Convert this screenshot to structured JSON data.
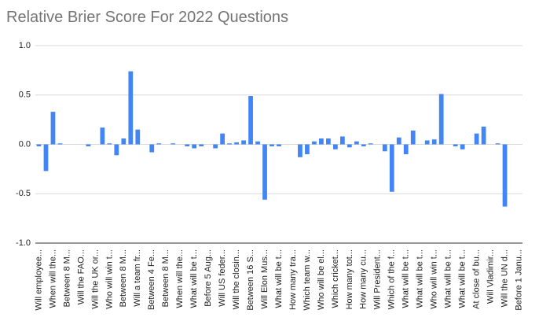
{
  "chart_data": {
    "type": "bar",
    "title": "Relative Brier Score For 2022 Questions",
    "color": "#4285f4",
    "grid": true,
    "ylim": [
      -1.0,
      1.0
    ],
    "yticks": [
      {
        "value": -1.0,
        "label": "-1.0"
      },
      -0.5,
      {
        "value": 0,
        "label": "0.0"
      },
      0.5,
      {
        "value": 1.0,
        "label": "1.0"
      }
    ],
    "categories": [
      "Will employee...",
      null,
      "When will the...",
      null,
      "Between 8 M...",
      null,
      "Will the FAO...",
      null,
      "Will the UK or...",
      null,
      "Who will win t...",
      null,
      "Between 8 M...",
      null,
      "Will a team fr...",
      null,
      "Between 4 Fe...",
      null,
      "Between 8 M...",
      null,
      "When will the...",
      null,
      "What will be t...",
      null,
      "Before 5 Aug...",
      null,
      "Will US feder...",
      null,
      "Will the closin...",
      null,
      "Between 16 S...",
      null,
      "Will Elon Mus...",
      null,
      "What will be t...",
      null,
      "How many tra...",
      null,
      "Which team w...",
      null,
      "Who will be el...",
      null,
      "Which cricket...",
      null,
      "How many tot...",
      null,
      "How many cu...",
      null,
      "Will President...",
      null,
      "Which of the f...",
      null,
      "What will be t...",
      null,
      "What will be t...",
      null,
      "Who will win t...",
      null,
      "What will be t...",
      null,
      "What will be t...",
      null,
      "At close of bu...",
      null,
      "Will Vladimir...",
      null,
      "Will the UN d...",
      null,
      "Before 1 Janu..."
    ],
    "values": [
      -0.02,
      -0.27,
      0.33,
      0.01,
      0,
      0,
      0,
      -0.02,
      0,
      0.17,
      0.01,
      -0.11,
      0.06,
      0.74,
      0.15,
      0,
      -0.08,
      0.01,
      0,
      0.01,
      0,
      -0.02,
      -0.04,
      -0.02,
      0,
      -0.04,
      0.11,
      0.01,
      0.02,
      0.04,
      0.49,
      0.03,
      -0.56,
      -0.02,
      -0.02,
      0,
      0,
      -0.13,
      -0.1,
      0.03,
      0.06,
      0.06,
      -0.05,
      0.08,
      -0.03,
      0.03,
      -0.02,
      0.01,
      0,
      -0.07,
      -0.48,
      0.07,
      -0.1,
      0.14,
      0,
      0.04,
      0.05,
      0.51,
      0,
      -0.02,
      -0.05,
      0,
      0.11,
      0.18,
      0,
      0.01,
      -0.63,
      0,
      0
    ]
  }
}
